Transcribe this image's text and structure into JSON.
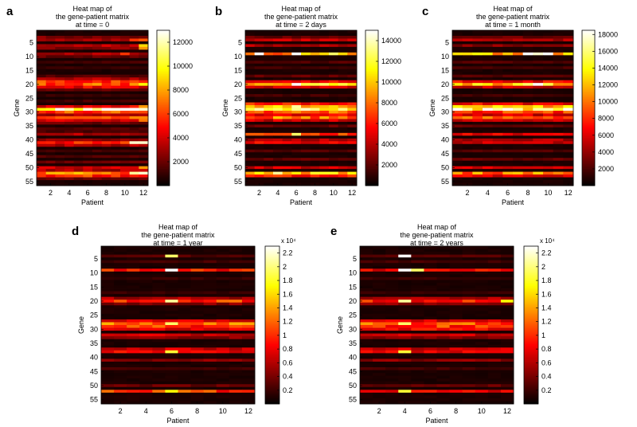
{
  "chart_data": [
    {
      "panel": "a",
      "type": "heatmap",
      "title_lines": [
        "Heat map of",
        "the gene-patient matrix",
        "at time = 0"
      ],
      "xlabel": "Patient",
      "ylabel": "Gene",
      "xticks": [
        2,
        4,
        6,
        8,
        10,
        12
      ],
      "yticks": [
        5,
        10,
        15,
        20,
        25,
        30,
        35,
        40,
        45,
        50,
        55
      ],
      "n_patients": 12,
      "n_genes": 56,
      "clim": [
        0,
        13000
      ],
      "colorbar_ticks": [
        2000,
        4000,
        6000,
        8000,
        10000,
        12000
      ],
      "colorbar_multiplier": "",
      "gene_base": {
        "3": 0.18,
        "4": 0.22,
        "6": 0.28,
        "7": 0.2,
        "9": 0.25,
        "10": 0.15,
        "12": 0.1,
        "14": 0.08,
        "17": 0.12,
        "18": 0.25,
        "19": 0.45,
        "20": 0.5,
        "21": 0.35,
        "22": 0.15,
        "24": 0.08,
        "26": 0.1,
        "28": 0.35,
        "29": 0.95,
        "30": 0.5,
        "31": 0.25,
        "32": 0.5,
        "33": 0.3,
        "34": 0.15,
        "36": 0.12,
        "37": 0.1,
        "38": 0.25,
        "40": 0.2,
        "41": 0.4,
        "42": 0.25,
        "44": 0.1,
        "46": 0.12,
        "48": 0.15,
        "50": 0.3,
        "51": 0.25,
        "52": 0.55,
        "53": 0.45,
        "54": 0.15
      },
      "hot_cells": [
        {
          "gene": 4,
          "patient": 11,
          "value": 0.45
        },
        {
          "gene": 4,
          "patient": 12,
          "value": 0.5
        },
        {
          "gene": 6,
          "patient": 12,
          "value": 0.7
        },
        {
          "gene": 7,
          "patient": 12,
          "value": 0.6
        },
        {
          "gene": 9,
          "patient": 10,
          "value": 0.45
        },
        {
          "gene": 20,
          "patient": 12,
          "value": 0.75
        },
        {
          "gene": 20,
          "patient": 11,
          "value": 0.6
        },
        {
          "gene": 29,
          "patient": 11,
          "value": 1.0
        },
        {
          "gene": 29,
          "patient": 12,
          "value": 0.95
        },
        {
          "gene": 28,
          "patient": 12,
          "value": 0.6
        },
        {
          "gene": 33,
          "patient": 12,
          "value": 0.55
        },
        {
          "gene": 41,
          "patient": 11,
          "value": 0.95
        },
        {
          "gene": 41,
          "patient": 12,
          "value": 0.95
        },
        {
          "gene": 52,
          "patient": 11,
          "value": 0.9
        },
        {
          "gene": 52,
          "patient": 12,
          "value": 0.95
        },
        {
          "gene": 50,
          "patient": 12,
          "value": 0.6
        }
      ]
    },
    {
      "panel": "b",
      "type": "heatmap",
      "title_lines": [
        "Heat map of",
        "the gene-patient matrix",
        "at time = 2 days"
      ],
      "xlabel": "Patient",
      "ylabel": "Gene",
      "xticks": [
        2,
        4,
        6,
        8,
        10,
        12
      ],
      "yticks": [
        5,
        10,
        15,
        20,
        25,
        30,
        35,
        40,
        45,
        50,
        55
      ],
      "n_patients": 12,
      "n_genes": 56,
      "clim": [
        0,
        15000
      ],
      "colorbar_ticks": [
        2000,
        4000,
        6000,
        8000,
        10000,
        12000,
        14000
      ],
      "colorbar_multiplier": "",
      "gene_base": {
        "3": 0.15,
        "4": 0.3,
        "6": 0.25,
        "9": 0.6,
        "12": 0.12,
        "14": 0.1,
        "17": 0.15,
        "19": 0.35,
        "20": 0.75,
        "21": 0.3,
        "24": 0.1,
        "27": 0.4,
        "28": 0.65,
        "29": 0.8,
        "30": 0.5,
        "31": 0.35,
        "32": 0.55,
        "33": 0.3,
        "35": 0.15,
        "38": 0.45,
        "40": 0.25,
        "41": 0.35,
        "44": 0.12,
        "47": 0.15,
        "50": 0.3,
        "52": 0.65,
        "53": 0.4
      },
      "hot_cells": [
        {
          "gene": 9,
          "patient": 2,
          "value": 1.0
        },
        {
          "gene": 9,
          "patient": 6,
          "value": 1.0
        },
        {
          "gene": 9,
          "patient": 10,
          "value": 0.85
        },
        {
          "gene": 20,
          "patient": 6,
          "value": 1.0
        },
        {
          "gene": 20,
          "patient": 9,
          "value": 0.85
        },
        {
          "gene": 28,
          "patient": 6,
          "value": 0.9
        },
        {
          "gene": 38,
          "patient": 6,
          "value": 0.85
        },
        {
          "gene": 52,
          "patient": 4,
          "value": 0.9
        },
        {
          "gene": 52,
          "patient": 2,
          "value": 0.75
        }
      ]
    },
    {
      "panel": "c",
      "type": "heatmap",
      "title_lines": [
        "Heat map of",
        "the gene-patient matrix",
        "at time = 1 month"
      ],
      "xlabel": "Patient",
      "ylabel": "Gene",
      "xticks": [
        2,
        4,
        6,
        8,
        10,
        12
      ],
      "yticks": [
        5,
        10,
        15,
        20,
        25,
        30,
        35,
        40,
        45,
        50,
        55
      ],
      "n_patients": 12,
      "n_genes": 56,
      "clim": [
        0,
        18500
      ],
      "colorbar_ticks": [
        2000,
        4000,
        6000,
        8000,
        10000,
        12000,
        14000,
        16000,
        18000
      ],
      "colorbar_multiplier": "",
      "gene_base": {
        "3": 0.15,
        "4": 0.25,
        "6": 0.2,
        "9": 0.65,
        "12": 0.12,
        "14": 0.1,
        "17": 0.12,
        "19": 0.35,
        "20": 0.7,
        "21": 0.3,
        "24": 0.1,
        "27": 0.35,
        "28": 0.65,
        "29": 0.85,
        "30": 0.45,
        "31": 0.3,
        "32": 0.5,
        "33": 0.3,
        "35": 0.15,
        "38": 0.35,
        "40": 0.25,
        "41": 0.3,
        "44": 0.12,
        "47": 0.15,
        "50": 0.3,
        "52": 0.55,
        "53": 0.35
      },
      "hot_cells": [
        {
          "gene": 9,
          "patient": 8,
          "value": 1.0
        },
        {
          "gene": 9,
          "patient": 9,
          "value": 0.95
        },
        {
          "gene": 9,
          "patient": 10,
          "value": 1.0
        },
        {
          "gene": 20,
          "patient": 9,
          "value": 1.0
        },
        {
          "gene": 20,
          "patient": 8,
          "value": 0.85
        },
        {
          "gene": 28,
          "patient": 12,
          "value": 0.75
        }
      ]
    },
    {
      "panel": "d",
      "type": "heatmap",
      "title_lines": [
        "Heat map of",
        "the gene-patient matrix",
        "at time = 1 year"
      ],
      "xlabel": "Patient",
      "ylabel": "Gene",
      "xticks": [
        2,
        4,
        6,
        8,
        10,
        12
      ],
      "yticks": [
        5,
        10,
        15,
        20,
        25,
        30,
        35,
        40,
        45,
        50,
        55
      ],
      "n_patients": 12,
      "n_genes": 56,
      "clim": [
        0,
        23000
      ],
      "colorbar_ticks": [
        0.2,
        0.4,
        0.6,
        0.8,
        1,
        1.2,
        1.4,
        1.6,
        1.8,
        2,
        2.2
      ],
      "colorbar_tick_scale": 10000,
      "colorbar_multiplier": "x 10⁴",
      "gene_base": {
        "4": 0.12,
        "6": 0.1,
        "9": 0.4,
        "12": 0.08,
        "17": 0.08,
        "19": 0.25,
        "20": 0.45,
        "21": 0.2,
        "27": 0.3,
        "28": 0.55,
        "29": 0.45,
        "30": 0.3,
        "32": 0.3,
        "33": 0.2,
        "37": 0.3,
        "38": 0.35,
        "41": 0.2,
        "44": 0.1,
        "50": 0.15,
        "52": 0.45
      },
      "hot_cells": [
        {
          "gene": 4,
          "patient": 6,
          "value": 0.85
        },
        {
          "gene": 9,
          "patient": 6,
          "value": 1.0
        },
        {
          "gene": 20,
          "patient": 6,
          "value": 0.9
        },
        {
          "gene": 28,
          "patient": 6,
          "value": 0.85
        },
        {
          "gene": 38,
          "patient": 6,
          "value": 0.8
        },
        {
          "gene": 52,
          "patient": 6,
          "value": 0.75
        }
      ]
    },
    {
      "panel": "e",
      "type": "heatmap",
      "title_lines": [
        "Heat map of",
        "the gene-patient matrix",
        "at time = 2 years"
      ],
      "xlabel": "Patient",
      "ylabel": "Gene",
      "xticks": [
        2,
        4,
        6,
        8,
        10,
        12
      ],
      "yticks": [
        5,
        10,
        15,
        20,
        25,
        30,
        35,
        40,
        45,
        50,
        55
      ],
      "n_patients": 12,
      "n_genes": 56,
      "clim": [
        0,
        23000
      ],
      "colorbar_ticks": [
        0.2,
        0.4,
        0.6,
        0.8,
        1,
        1.2,
        1.4,
        1.6,
        1.8,
        2,
        2.2
      ],
      "colorbar_tick_scale": 10000,
      "colorbar_multiplier": "x 10⁴",
      "gene_base": {
        "4": 0.12,
        "6": 0.1,
        "9": 0.35,
        "12": 0.08,
        "17": 0.08,
        "19": 0.25,
        "20": 0.4,
        "21": 0.2,
        "27": 0.3,
        "28": 0.5,
        "29": 0.45,
        "30": 0.35,
        "32": 0.3,
        "33": 0.2,
        "37": 0.3,
        "38": 0.35,
        "41": 0.2,
        "44": 0.1,
        "50": 0.15,
        "52": 0.35
      },
      "hot_cells": [
        {
          "gene": 4,
          "patient": 4,
          "value": 1.0
        },
        {
          "gene": 9,
          "patient": 4,
          "value": 1.0
        },
        {
          "gene": 9,
          "patient": 5,
          "value": 0.85
        },
        {
          "gene": 20,
          "patient": 4,
          "value": 0.9
        },
        {
          "gene": 28,
          "patient": 4,
          "value": 0.85
        },
        {
          "gene": 38,
          "patient": 4,
          "value": 0.8
        },
        {
          "gene": 52,
          "patient": 4,
          "value": 0.8
        },
        {
          "gene": 20,
          "patient": 12,
          "value": 0.75
        }
      ]
    }
  ]
}
